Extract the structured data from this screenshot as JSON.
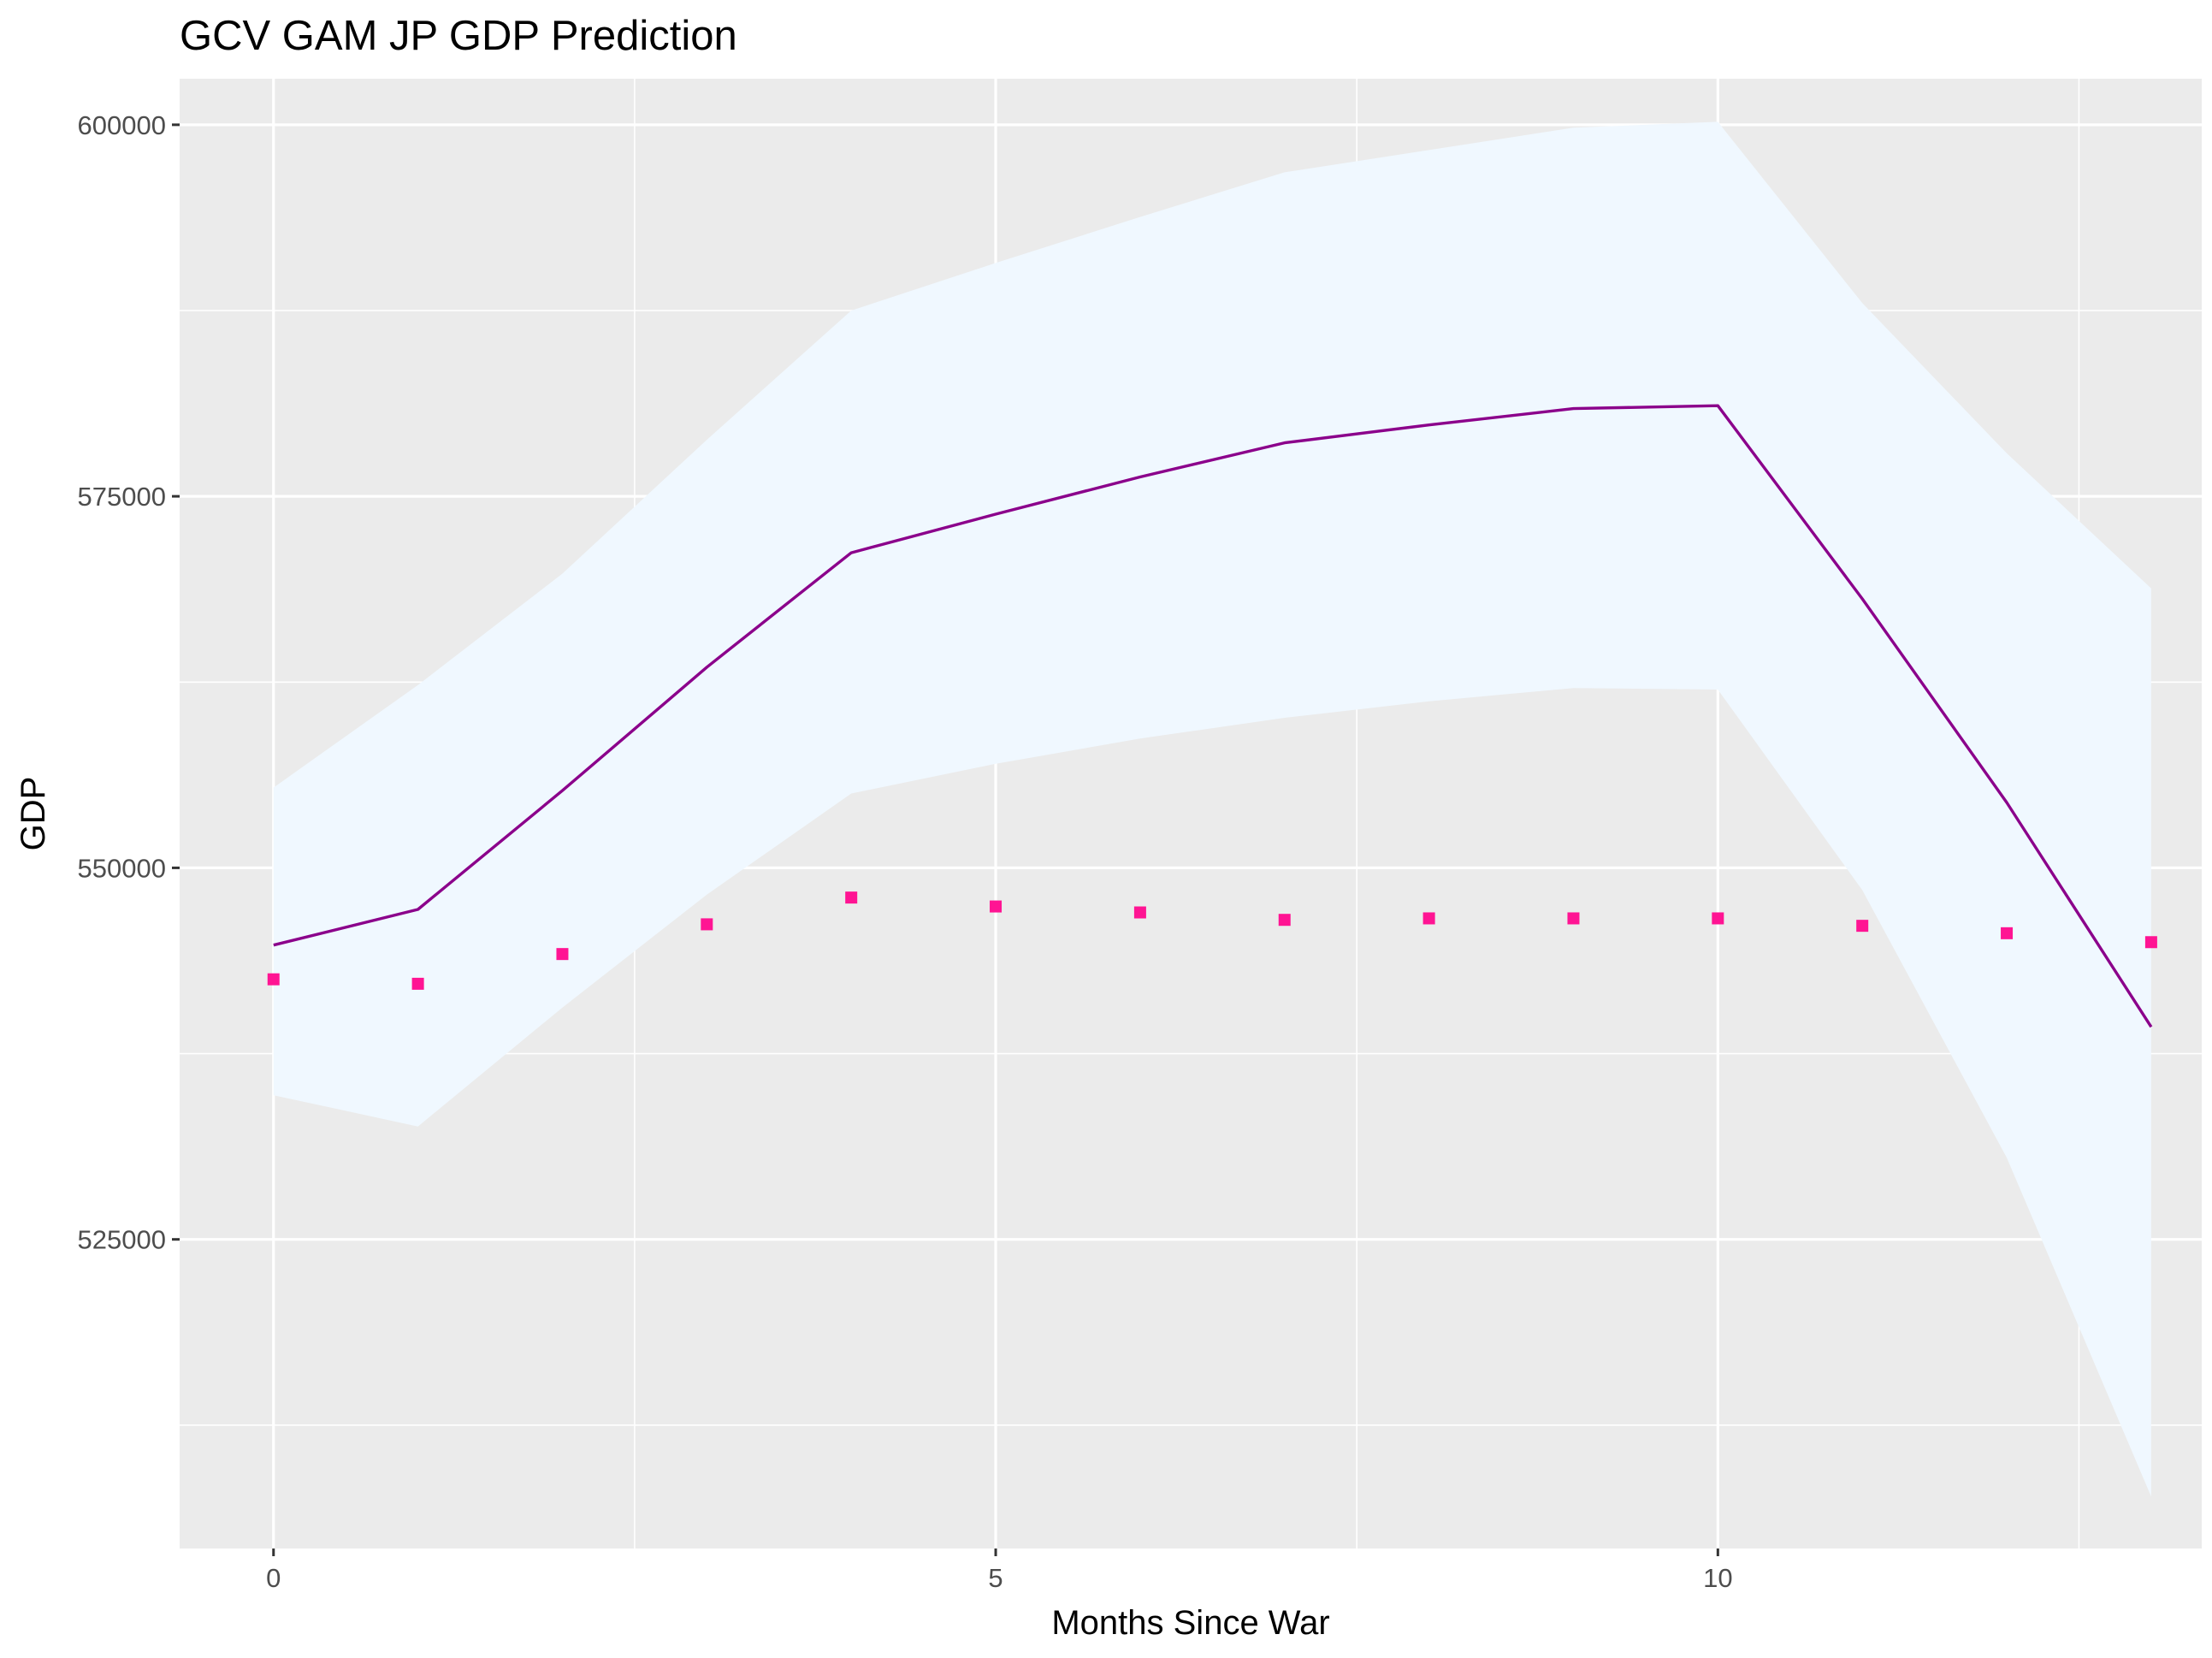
{
  "chart_data": {
    "type": "line",
    "title": "GCV GAM JP GDP Prediction",
    "xlabel": "Months Since War",
    "ylabel": "GDP",
    "x": [
      0,
      1,
      2,
      3,
      4,
      5,
      6,
      7,
      8,
      9,
      10,
      11,
      12,
      13
    ],
    "xlim": [
      -0.65,
      13.35
    ],
    "ylim": [
      504200,
      603100
    ],
    "x_ticks": [
      0,
      5,
      10
    ],
    "x_tick_labels": [
      "0",
      "5",
      "10"
    ],
    "x_minor_ticks": [
      2.5,
      7.5,
      12.5
    ],
    "y_ticks": [
      525000,
      550000,
      575000,
      600000
    ],
    "y_tick_labels": [
      "525000",
      "550000",
      "575000",
      "600000"
    ],
    "y_minor_ticks": [
      512500,
      537500,
      562500,
      587500
    ],
    "grid": true,
    "colors": {
      "panel": "#ebebeb",
      "ribbon": "#f0f8ff",
      "line": "#8b008b",
      "points": "#ff1493"
    },
    "series": [
      {
        "type": "ribbon",
        "lower": [
          534700,
          532600,
          540600,
          548200,
          555000,
          557000,
          558700,
          560100,
          561200,
          562100,
          562000,
          548500,
          530500,
          507700
        ],
        "upper": [
          555400,
          562300,
          569800,
          578800,
          587500,
          590700,
          593800,
          596800,
          598300,
          599800,
          600200,
          588000,
          577900,
          568800
        ]
      },
      {
        "type": "line",
        "values": [
          544800,
          547200,
          555200,
          563500,
          571200,
          573800,
          576300,
          578600,
          579800,
          580900,
          581100,
          568100,
          554400,
          539300
        ]
      },
      {
        "type": "scatter",
        "values": [
          542500,
          542200,
          544200,
          546200,
          548000,
          547400,
          547000,
          546500,
          546600,
          546600,
          546600,
          546100,
          545600,
          545000
        ]
      }
    ]
  }
}
